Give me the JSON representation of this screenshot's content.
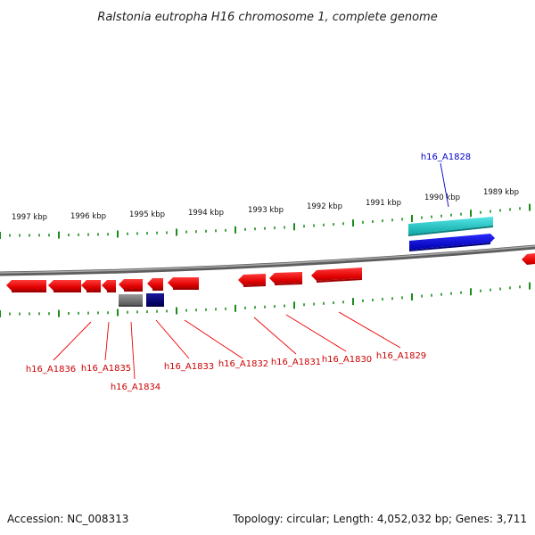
{
  "title": "Ralstonia eutropha H16 chromosome 1, complete genome",
  "scale_labels": [
    "1997 kbp",
    "1996 kbp",
    "1995 kbp",
    "1994 kbp",
    "1993 kbp",
    "1992 kbp",
    "1991 kbp",
    "1990 kbp",
    "1989 kbp"
  ],
  "gene_labels": [
    {
      "text": "h16_A1836",
      "color": "#cc0000"
    },
    {
      "text": "h16_A1835",
      "color": "#cc0000"
    },
    {
      "text": "h16_A1834",
      "color": "#cc0000"
    },
    {
      "text": "h16_A1833",
      "color": "#cc0000"
    },
    {
      "text": "h16_A1832",
      "color": "#cc0000"
    },
    {
      "text": "h16_A1831",
      "color": "#cc0000"
    },
    {
      "text": "h16_A1830",
      "color": "#cc0000"
    },
    {
      "text": "h16_A1829",
      "color": "#cc0000"
    },
    {
      "text": "h16_A1828",
      "color": "#0000cc"
    }
  ],
  "footer": {
    "accession": "Accession: NC_008313",
    "stats": "Topology: circular; Length: 4,052,032 bp; Genes: 3,711"
  },
  "colors": {
    "gene_forward": "#ee0000",
    "gene_other": "#0000ee",
    "rna": "#22cccc",
    "tick": "#1a8c1a",
    "backbone": "#808080"
  }
}
